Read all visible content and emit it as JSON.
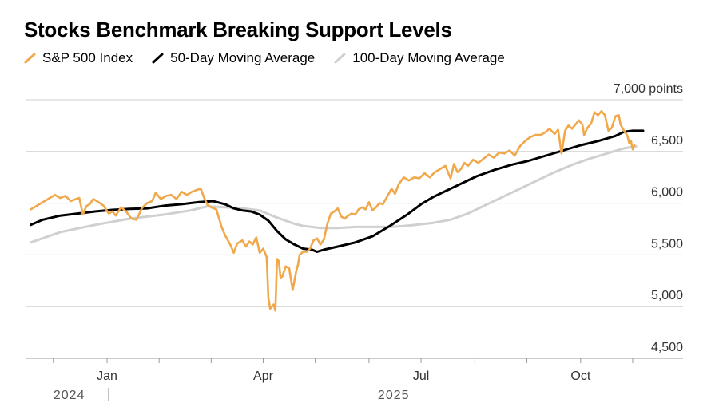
{
  "chart_data": {
    "type": "line",
    "title": "Stocks Benchmark Breaking Support Levels",
    "ylabel": "points",
    "ylim": [
      4500,
      7000
    ],
    "y_ticks": [
      {
        "value": 7000,
        "label": "7,000 points"
      },
      {
        "value": 6500,
        "label": "6,500"
      },
      {
        "value": 6000,
        "label": "6,000"
      },
      {
        "value": 5500,
        "label": "5,500"
      },
      {
        "value": 5000,
        "label": "5,000"
      },
      {
        "value": 4500,
        "label": "4,500"
      }
    ],
    "x_range_days": [
      0,
      356
    ],
    "x_ticks": [
      {
        "day": 47,
        "label": "Jan"
      },
      {
        "day": 137,
        "label": "Apr"
      },
      {
        "day": 228,
        "label": "Jul"
      },
      {
        "day": 320,
        "label": "Oct"
      }
    ],
    "minor_tick_days": [
      16,
      77,
      107,
      167,
      198,
      259,
      289,
      350
    ],
    "year_labels": [
      {
        "day": 11,
        "label": "2024"
      },
      {
        "day": 198,
        "label": "2025"
      }
    ],
    "year_divider_day": 47,
    "series": [
      {
        "name": "S&P 500 Index",
        "color": "#f0a84a",
        "points": [
          [
            3,
            5940
          ],
          [
            8,
            5990
          ],
          [
            13,
            6040
          ],
          [
            17,
            6080
          ],
          [
            20,
            6050
          ],
          [
            23,
            6070
          ],
          [
            26,
            6020
          ],
          [
            29,
            6040
          ],
          [
            31,
            6050
          ],
          [
            33,
            5890
          ],
          [
            35,
            5970
          ],
          [
            37,
            5990
          ],
          [
            39,
            6040
          ],
          [
            42,
            6010
          ],
          [
            45,
            5975
          ],
          [
            48,
            5900
          ],
          [
            50,
            5920
          ],
          [
            52,
            5880
          ],
          [
            55,
            5960
          ],
          [
            58,
            5920
          ],
          [
            61,
            5850
          ],
          [
            64,
            5840
          ],
          [
            67,
            5950
          ],
          [
            70,
            6000
          ],
          [
            73,
            6020
          ],
          [
            75,
            6100
          ],
          [
            78,
            6040
          ],
          [
            81,
            6070
          ],
          [
            84,
            6080
          ],
          [
            87,
            6040
          ],
          [
            90,
            6110
          ],
          [
            93,
            6080
          ],
          [
            96,
            6110
          ],
          [
            99,
            6130
          ],
          [
            101,
            6140
          ],
          [
            103,
            6050
          ],
          [
            105,
            5980
          ],
          [
            107,
            5960
          ],
          [
            110,
            5940
          ],
          [
            113,
            5770
          ],
          [
            115,
            5690
          ],
          [
            118,
            5600
          ],
          [
            120,
            5520
          ],
          [
            122,
            5610
          ],
          [
            125,
            5640
          ],
          [
            127,
            5580
          ],
          [
            129,
            5630
          ],
          [
            131,
            5600
          ],
          [
            133,
            5670
          ],
          [
            135,
            5520
          ],
          [
            137,
            5560
          ],
          [
            139,
            5480
          ],
          [
            140,
            5080
          ],
          [
            141,
            4980
          ],
          [
            143,
            5020
          ],
          [
            144,
            4960
          ],
          [
            145,
            5460
          ],
          [
            146,
            5440
          ],
          [
            147,
            5280
          ],
          [
            148,
            5290
          ],
          [
            150,
            5390
          ],
          [
            152,
            5370
          ],
          [
            154,
            5160
          ],
          [
            156,
            5340
          ],
          [
            157,
            5400
          ],
          [
            158,
            5500
          ],
          [
            160,
            5530
          ],
          [
            162,
            5530
          ],
          [
            164,
            5560
          ],
          [
            166,
            5640
          ],
          [
            168,
            5660
          ],
          [
            170,
            5600
          ],
          [
            172,
            5650
          ],
          [
            174,
            5800
          ],
          [
            176,
            5900
          ],
          [
            178,
            5920
          ],
          [
            180,
            5950
          ],
          [
            182,
            5870
          ],
          [
            184,
            5850
          ],
          [
            186,
            5880
          ],
          [
            188,
            5900
          ],
          [
            190,
            5890
          ],
          [
            192,
            5940
          ],
          [
            194,
            5960
          ],
          [
            196,
            5940
          ],
          [
            198,
            6010
          ],
          [
            200,
            5930
          ],
          [
            202,
            5960
          ],
          [
            204,
            6000
          ],
          [
            206,
            5990
          ],
          [
            209,
            6080
          ],
          [
            211,
            6140
          ],
          [
            213,
            6090
          ],
          [
            215,
            6180
          ],
          [
            218,
            6250
          ],
          [
            221,
            6220
          ],
          [
            224,
            6250
          ],
          [
            227,
            6240
          ],
          [
            230,
            6290
          ],
          [
            233,
            6250
          ],
          [
            236,
            6300
          ],
          [
            239,
            6330
          ],
          [
            242,
            6360
          ],
          [
            245,
            6240
          ],
          [
            247,
            6380
          ],
          [
            249,
            6300
          ],
          [
            251,
            6330
          ],
          [
            253,
            6390
          ],
          [
            255,
            6360
          ],
          [
            258,
            6420
          ],
          [
            261,
            6390
          ],
          [
            264,
            6430
          ],
          [
            267,
            6470
          ],
          [
            270,
            6440
          ],
          [
            273,
            6490
          ],
          [
            276,
            6480
          ],
          [
            279,
            6510
          ],
          [
            282,
            6460
          ],
          [
            285,
            6550
          ],
          [
            288,
            6600
          ],
          [
            291,
            6640
          ],
          [
            294,
            6660
          ],
          [
            297,
            6660
          ],
          [
            300,
            6690
          ],
          [
            302,
            6720
          ],
          [
            305,
            6670
          ],
          [
            307,
            6710
          ],
          [
            309,
            6480
          ],
          [
            311,
            6700
          ],
          [
            313,
            6750
          ],
          [
            315,
            6720
          ],
          [
            317,
            6760
          ],
          [
            319,
            6800
          ],
          [
            321,
            6760
          ],
          [
            322,
            6660
          ],
          [
            324,
            6730
          ],
          [
            326,
            6770
          ],
          [
            328,
            6880
          ],
          [
            330,
            6850
          ],
          [
            332,
            6890
          ],
          [
            334,
            6850
          ],
          [
            336,
            6700
          ],
          [
            338,
            6730
          ],
          [
            340,
            6840
          ],
          [
            342,
            6850
          ],
          [
            343,
            6760
          ],
          [
            345,
            6700
          ],
          [
            347,
            6650
          ],
          [
            348,
            6580
          ],
          [
            349,
            6600
          ],
          [
            350,
            6520
          ],
          [
            351,
            6560
          ]
        ]
      },
      {
        "name": "50-Day Moving Average",
        "color": "#000000",
        "points": [
          [
            3,
            5790
          ],
          [
            10,
            5840
          ],
          [
            20,
            5880
          ],
          [
            30,
            5900
          ],
          [
            40,
            5920
          ],
          [
            50,
            5935
          ],
          [
            60,
            5945
          ],
          [
            70,
            5950
          ],
          [
            80,
            5975
          ],
          [
            90,
            5990
          ],
          [
            100,
            6010
          ],
          [
            108,
            6020
          ],
          [
            115,
            5990
          ],
          [
            120,
            5950
          ],
          [
            125,
            5930
          ],
          [
            130,
            5920
          ],
          [
            135,
            5890
          ],
          [
            140,
            5830
          ],
          [
            145,
            5730
          ],
          [
            150,
            5650
          ],
          [
            155,
            5600
          ],
          [
            160,
            5560
          ],
          [
            165,
            5550
          ],
          [
            168,
            5530
          ],
          [
            172,
            5550
          ],
          [
            180,
            5580
          ],
          [
            190,
            5620
          ],
          [
            200,
            5680
          ],
          [
            210,
            5780
          ],
          [
            220,
            5890
          ],
          [
            228,
            5990
          ],
          [
            235,
            6060
          ],
          [
            240,
            6100
          ],
          [
            250,
            6180
          ],
          [
            260,
            6260
          ],
          [
            270,
            6320
          ],
          [
            280,
            6370
          ],
          [
            290,
            6410
          ],
          [
            300,
            6460
          ],
          [
            310,
            6510
          ],
          [
            320,
            6560
          ],
          [
            330,
            6600
          ],
          [
            340,
            6650
          ],
          [
            345,
            6690
          ],
          [
            350,
            6700
          ],
          [
            356,
            6700
          ]
        ]
      },
      {
        "name": "100-Day Moving Average",
        "color": "#d0d0d0",
        "points": [
          [
            3,
            5620
          ],
          [
            20,
            5720
          ],
          [
            40,
            5790
          ],
          [
            60,
            5850
          ],
          [
            80,
            5890
          ],
          [
            95,
            5930
          ],
          [
            105,
            5970
          ],
          [
            115,
            5960
          ],
          [
            125,
            5950
          ],
          [
            135,
            5930
          ],
          [
            145,
            5860
          ],
          [
            155,
            5800
          ],
          [
            160,
            5780
          ],
          [
            170,
            5760
          ],
          [
            180,
            5760
          ],
          [
            190,
            5770
          ],
          [
            200,
            5770
          ],
          [
            210,
            5770
          ],
          [
            215,
            5775
          ],
          [
            225,
            5790
          ],
          [
            235,
            5810
          ],
          [
            245,
            5840
          ],
          [
            255,
            5900
          ],
          [
            265,
            5980
          ],
          [
            275,
            6060
          ],
          [
            285,
            6140
          ],
          [
            295,
            6220
          ],
          [
            305,
            6300
          ],
          [
            315,
            6370
          ],
          [
            325,
            6430
          ],
          [
            335,
            6480
          ],
          [
            345,
            6530
          ],
          [
            352,
            6550
          ]
        ]
      }
    ]
  }
}
